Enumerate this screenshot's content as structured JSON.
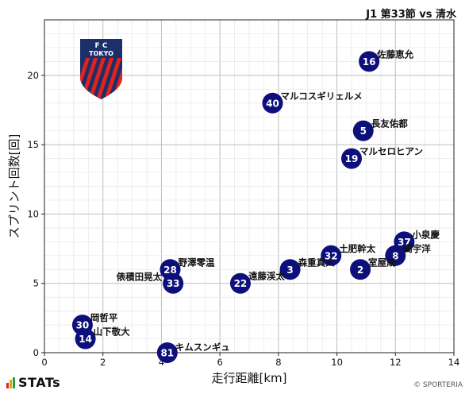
{
  "header": {
    "match_label": "J1 第33節 vs 清水"
  },
  "footer": {
    "brand": "STATs",
    "copyright": "© SPORTERIA"
  },
  "badge": {
    "line1": "F      C",
    "line2": "TOKYO",
    "colors": {
      "navy": "#1c2f6b",
      "red": "#e2231a"
    }
  },
  "colors": {
    "point": "#0d0f7a",
    "point_text": "#ffffff",
    "grid_major": "#bdbdbd",
    "grid_minor": "#e6e6e6"
  },
  "chart_data": {
    "type": "scatter",
    "xlabel": "走行距離[km]",
    "ylabel": "スプリント回数[回]",
    "xlim": [
      0,
      14
    ],
    "ylim": [
      0,
      24
    ],
    "xticks": [
      0,
      2,
      4,
      6,
      8,
      10,
      12,
      14
    ],
    "yticks": [
      0,
      5,
      10,
      15,
      20
    ],
    "grid": true,
    "points": [
      {
        "number": "16",
        "name": "佐藤恵允",
        "x": 11.1,
        "y": 21
      },
      {
        "number": "40",
        "name": "マルコスギリェルメ",
        "x": 7.8,
        "y": 18
      },
      {
        "number": "5",
        "name": "長友佑都",
        "x": 10.9,
        "y": 16
      },
      {
        "number": "19",
        "name": "マルセロヒアン",
        "x": 10.5,
        "y": 14
      },
      {
        "number": "37",
        "name": "小泉慶",
        "x": 12.3,
        "y": 8
      },
      {
        "number": "8",
        "name": "高宇洋",
        "x": 12.0,
        "y": 7
      },
      {
        "number": "32",
        "name": "土肥幹太",
        "x": 9.8,
        "y": 7
      },
      {
        "number": "3",
        "name": "森重真人",
        "x": 8.4,
        "y": 6
      },
      {
        "number": "2",
        "name": "室屋成",
        "x": 10.8,
        "y": 6
      },
      {
        "number": "28",
        "name": "野澤零温",
        "x": 4.3,
        "y": 6
      },
      {
        "number": "33",
        "name": "俵積田晃太",
        "x": 4.4,
        "y": 5
      },
      {
        "number": "22",
        "name": "遠藤渓太",
        "x": 6.7,
        "y": 5
      },
      {
        "number": "30",
        "name": "岡哲平",
        "x": 1.3,
        "y": 2
      },
      {
        "number": "14",
        "name": "山下敬大",
        "x": 1.4,
        "y": 1
      },
      {
        "number": "81",
        "name": "キムスンギュ",
        "x": 4.2,
        "y": 0
      }
    ]
  }
}
